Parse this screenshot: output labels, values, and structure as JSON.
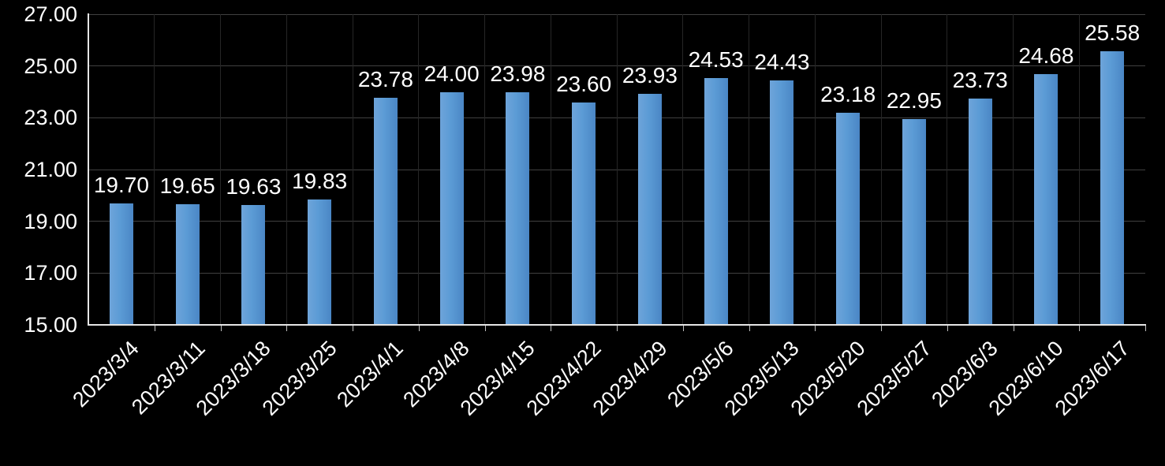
{
  "chart_data": {
    "type": "bar",
    "title": "",
    "xlabel": "",
    "ylabel": "",
    "categories": [
      "2023/3/4",
      "2023/3/11",
      "2023/3/18",
      "2023/3/25",
      "2023/4/1",
      "2023/4/8",
      "2023/4/15",
      "2023/4/22",
      "2023/4/29",
      "2023/5/6",
      "2023/5/13",
      "2023/5/20",
      "2023/5/27",
      "2023/6/3",
      "2023/6/10",
      "2023/6/17"
    ],
    "values": [
      19.7,
      19.65,
      19.63,
      19.83,
      23.78,
      24.0,
      23.98,
      23.6,
      23.93,
      24.53,
      24.43,
      23.18,
      22.95,
      23.73,
      24.68,
      25.58
    ],
    "value_labels": [
      "19.70",
      "19.65",
      "19.63",
      "19.83",
      "23.78",
      "24.00",
      "23.98",
      "23.60",
      "23.93",
      "24.53",
      "24.43",
      "23.18",
      "22.95",
      "23.73",
      "24.68",
      "25.58"
    ],
    "y_ticks": [
      27,
      25,
      23,
      21,
      19,
      17,
      15
    ],
    "y_tick_labels": [
      "27.00",
      "25.00",
      "23.00",
      "21.00",
      "19.00",
      "17.00",
      "15.00"
    ],
    "ylim": [
      15,
      27
    ],
    "grid": true,
    "legend": "none",
    "colors": {
      "background": "#000000",
      "bar": "#5b9bd5",
      "grid": "#404040",
      "axis": "#e6e6e6",
      "text": "#ffffff"
    }
  }
}
